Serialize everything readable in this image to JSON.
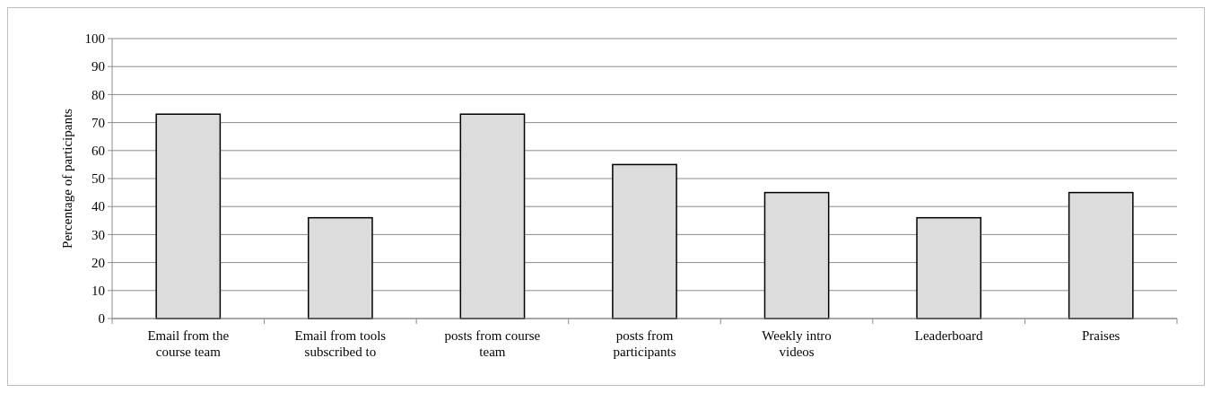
{
  "chart_data": {
    "type": "bar",
    "ylabel": "Percentage of participants",
    "categories": [
      "Email from the course team",
      "Email from tools subscribed to",
      "posts from course team",
      "posts from participants",
      "Weekly intro videos",
      "Leaderboard",
      "Praises"
    ],
    "values": [
      73,
      36,
      73,
      55,
      45,
      36,
      45
    ],
    "color": "#dcdcdc",
    "ylim": [
      0,
      100
    ],
    "yticks": [
      0,
      10,
      20,
      30,
      40,
      50,
      60,
      70,
      80,
      90,
      100
    ],
    "grid": "y"
  }
}
